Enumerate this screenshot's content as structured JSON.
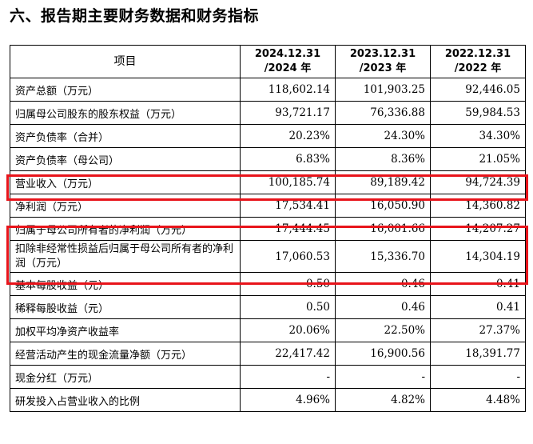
{
  "title": "六、报告期主要财务数据和财务指标",
  "columns": {
    "item": "项目",
    "y2024_line1": "2024.12.31",
    "y2024_line2": "/2024 年",
    "y2023_line1": "2023.12.31",
    "y2023_line2": "/2023 年",
    "y2022_line1": "2022.12.31",
    "y2022_line2": "/2022 年"
  },
  "rows": [
    {
      "label": "资产总额（万元）",
      "v2024": "118,602.14",
      "v2023": "101,903.25",
      "v2022": "92,446.05"
    },
    {
      "label": "归属母公司股东的股东权益（万元）",
      "v2024": "93,721.17",
      "v2023": "76,336.88",
      "v2022": "59,984.53"
    },
    {
      "label": "资产负债率（合并）",
      "v2024": "20.23%",
      "v2023": "24.30%",
      "v2022": "34.30%"
    },
    {
      "label": "资产负债率（母公司）",
      "v2024": "6.83%",
      "v2023": "8.36%",
      "v2022": "21.05%"
    },
    {
      "label": "营业收入（万元）",
      "v2024": "100,185.74",
      "v2023": "89,189.42",
      "v2022": "94,724.39"
    },
    {
      "label": "净利润（万元）",
      "v2024": "17,534.41",
      "v2023": "16,050.90",
      "v2022": "14,360.82"
    },
    {
      "label": "归属于母公司所有者的净利润（万元）",
      "v2024": "17,444.45",
      "v2023": "16,001.66",
      "v2022": "14,207.27"
    },
    {
      "label": "扣除非经常性损益后归属于母公司所有者的净利润（万元）",
      "v2024": "17,060.53",
      "v2023": "15,336.70",
      "v2022": "14,304.19"
    },
    {
      "label": "基本每股收益（元）",
      "v2024": "0.50",
      "v2023": "0.46",
      "v2022": "0.41"
    },
    {
      "label": "稀释每股收益（元）",
      "v2024": "0.50",
      "v2023": "0.46",
      "v2022": "0.41"
    },
    {
      "label": "加权平均净资产收益率",
      "v2024": "20.06%",
      "v2023": "22.50%",
      "v2022": "27.37%"
    },
    {
      "label": "经营活动产生的现金流量净额（万元）",
      "v2024": "22,417.42",
      "v2023": "16,900.56",
      "v2022": "18,391.77"
    },
    {
      "label": "现金分红（万元）",
      "v2024": "-",
      "v2023": "-",
      "v2022": "-"
    },
    {
      "label": "研发投入占营业收入的比例",
      "v2024": "4.96%",
      "v2023": "4.82%",
      "v2022": "4.48%"
    }
  ],
  "highlight_color": "#e8141b"
}
